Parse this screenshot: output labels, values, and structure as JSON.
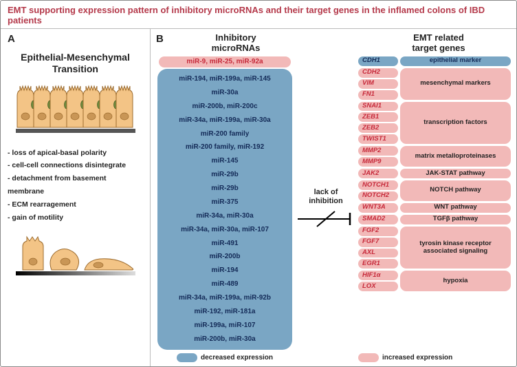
{
  "title": "EMT supporting expression pattern of inhibitory microRNAs and their target genes in the inflamed colons of IBD patients",
  "panelA": {
    "letter": "A",
    "heading_line1": "Epithelial-Mesenchymal",
    "heading_line2": "Transition",
    "bullets": [
      "- loss of apical-basal polarity",
      "- cell-cell connections disintegrate",
      "- detachment from basement membrane",
      "- ECM rearragement",
      "- gain of motility"
    ],
    "colors": {
      "cell_fill": "#f3c486",
      "cell_stroke": "#9c6b2e",
      "nucleus_fill": "#c99656",
      "junction_fill": "#6e8b3d",
      "membrane": "#555555"
    }
  },
  "panelB": {
    "letter": "B",
    "left_heading_l1": "Inhibitory",
    "left_heading_l2": "microRNAs",
    "right_heading_l1": "EMT related",
    "right_heading_l2": "target genes",
    "lack_l1": "lack of",
    "lack_l2": "inhibition",
    "increased_pill": "miR-9, miR-25, miR-92a",
    "mirna_rows": [
      "miR-194, miR-199a, miR-145",
      "miR-30a",
      "miR-200b, miR-200c",
      "miR-34a, miR-199a, miR-30a",
      "miR-200 family",
      "miR-200 family, miR-192",
      "miR-145",
      "miR-29b",
      "miR-29b",
      "miR-375",
      "miR-34a, miR-30a",
      "miR-34a, miR-30a, miR-107",
      "miR-491",
      "miR-200b",
      "miR-194",
      "miR-489",
      "miR-34a, miR-199a, miR-92b",
      "miR-192, miR-181a",
      "miR-199a, miR-107",
      "miR-200b, miR-30a"
    ],
    "legend_decreased": "decreased expression",
    "legend_increased": "increased expression",
    "colors": {
      "blue_bg": "#7aa6c4",
      "blue_text": "#132a57",
      "pink_bg": "#f2b9b8",
      "red_text": "#c62839",
      "black": "#222222"
    },
    "gene_groups": [
      {
        "genes": [
          "CDH1"
        ],
        "category": "epithelial marker",
        "gene_bg": "blue",
        "cat_bg": "blue"
      },
      {
        "genes": [
          "CDH2",
          "VIM",
          "FN1"
        ],
        "category": "mesenchymal markers",
        "gene_bg": "pink",
        "cat_bg": "pink"
      },
      {
        "genes": [
          "SNAI1",
          "ZEB1",
          "ZEB2",
          "TWIST1"
        ],
        "category": "transcription factors",
        "gene_bg": "pink",
        "cat_bg": "pink"
      },
      {
        "genes": [
          "MMP2",
          "MMP9"
        ],
        "category": "matrix metalloproteinases",
        "gene_bg": "pink",
        "cat_bg": "pink"
      },
      {
        "genes": [
          "JAK2"
        ],
        "category": "JAK-STAT pathway",
        "gene_bg": "pink",
        "cat_bg": "pink"
      },
      {
        "genes": [
          "NOTCH1",
          "NOTCH2"
        ],
        "category": "NOTCH pathway",
        "gene_bg": "pink",
        "cat_bg": "pink"
      },
      {
        "genes": [
          "WNT3A"
        ],
        "category": "WNT pathway",
        "gene_bg": "pink",
        "cat_bg": "pink"
      },
      {
        "genes": [
          "SMAD2"
        ],
        "category": "TGFβ pathway",
        "gene_bg": "pink",
        "cat_bg": "pink"
      },
      {
        "genes": [
          "FGF2",
          "FGF7",
          "AXL",
          "EGR1"
        ],
        "category": "tyrosin kinase receptor associated signaling",
        "gene_bg": "pink",
        "cat_bg": "pink"
      },
      {
        "genes": [
          "HIF1α",
          "LOX"
        ],
        "category": "hypoxia",
        "gene_bg": "pink",
        "cat_bg": "pink"
      }
    ]
  }
}
